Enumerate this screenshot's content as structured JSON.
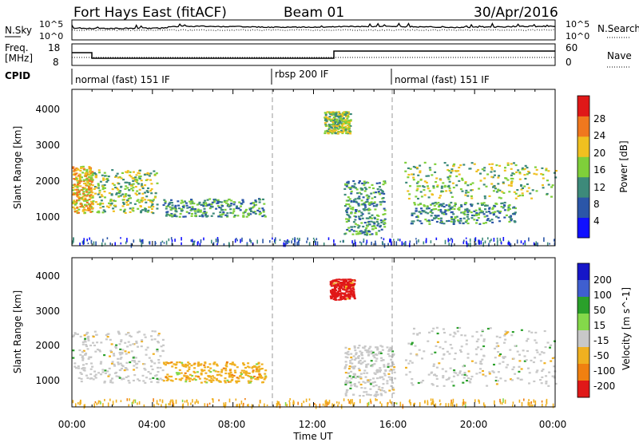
{
  "header": {
    "station": "Fort Hays East (fitACF)",
    "beam": "Beam 01",
    "date": "30/Apr/2016"
  },
  "top_strip": {
    "left_label": "N.Sky",
    "right_label": "N.Search",
    "left_ticks": [
      "10^5",
      "10^0"
    ],
    "right_ticks": [
      "10^5",
      "10^0"
    ]
  },
  "freq_strip": {
    "left_label_line1": "Freq.",
    "left_label_line2": "[MHz]",
    "right_label": "Nave",
    "left_ticks": [
      "18",
      "8"
    ],
    "right_ticks": [
      "60",
      "0"
    ]
  },
  "cpid": {
    "label": "CPID",
    "segments": [
      "normal (fast) 151 IF",
      "rbsp 200 IF",
      "normal (fast) 151 IF"
    ]
  },
  "chart_data": [
    {
      "type": "heatmap",
      "ylabel": "Slant Range [km]",
      "yticks": [
        "1000",
        "2000",
        "3000",
        "4000"
      ],
      "ylim": [
        180,
        4500
      ],
      "colorbar": {
        "label": "Power [dB]",
        "ticks": [
          "4",
          "8",
          "12",
          "16",
          "20",
          "24",
          "28"
        ],
        "colors": [
          "#1010ff",
          "#2b56a8",
          "#3d8a7a",
          "#7fcf3a",
          "#f0c020",
          "#f0781e",
          "#e01818"
        ]
      },
      "echo_regions": [
        {
          "x": [
            0.0,
            1.0
          ],
          "y": [
            1100,
            2400
          ],
          "power": 20
        },
        {
          "x": [
            1.0,
            4.2
          ],
          "y": [
            1100,
            2300
          ],
          "power": 16
        },
        {
          "x": [
            4.5,
            9.6
          ],
          "y": [
            1000,
            1500
          ],
          "power": 12
        },
        {
          "x": [
            12.5,
            13.8
          ],
          "y": [
            3300,
            3900
          ],
          "power": 16
        },
        {
          "x": [
            13.5,
            15.5
          ],
          "y": [
            500,
            2000
          ],
          "power": 12
        },
        {
          "x": [
            16.8,
            22.0
          ],
          "y": [
            800,
            1400
          ],
          "power": 12
        },
        {
          "x": [
            16.5,
            24.0
          ],
          "y": [
            1500,
            2500
          ],
          "power": 16
        }
      ]
    },
    {
      "type": "heatmap",
      "ylabel": "Slant Range [km]",
      "yticks": [
        "1000",
        "2000",
        "3000",
        "4000"
      ],
      "ylim": [
        180,
        4500
      ],
      "colorbar": {
        "label": "Velocity [m s^-1]",
        "ticks": [
          "200",
          "100",
          "50",
          "15",
          "-15",
          "-50",
          "-100",
          "-200"
        ],
        "colors": [
          "#1616c8",
          "#3f5fd0",
          "#2aa02a",
          "#84d84a",
          "#c8c8c8",
          "#f0b020",
          "#f08010",
          "#e01818"
        ]
      },
      "echo_regions": [
        {
          "x": [
            0.0,
            4.5
          ],
          "y": [
            900,
            2400
          ],
          "velocity": 0
        },
        {
          "x": [
            4.5,
            9.6
          ],
          "y": [
            900,
            1500
          ],
          "velocity": -30
        },
        {
          "x": [
            12.8,
            14.0
          ],
          "y": [
            3300,
            3900
          ],
          "velocity": -200
        },
        {
          "x": [
            13.5,
            16.0
          ],
          "y": [
            500,
            2000
          ],
          "velocity": 0
        },
        {
          "x": [
            16.5,
            24.0
          ],
          "y": [
            800,
            2500
          ],
          "velocity": 0
        }
      ]
    }
  ],
  "time_axis": {
    "label": "Time UT",
    "ticks": [
      "00:00",
      "04:00",
      "08:00",
      "12:00",
      "16:00",
      "20:00",
      "00:00"
    ],
    "xlim": [
      0,
      24
    ]
  }
}
